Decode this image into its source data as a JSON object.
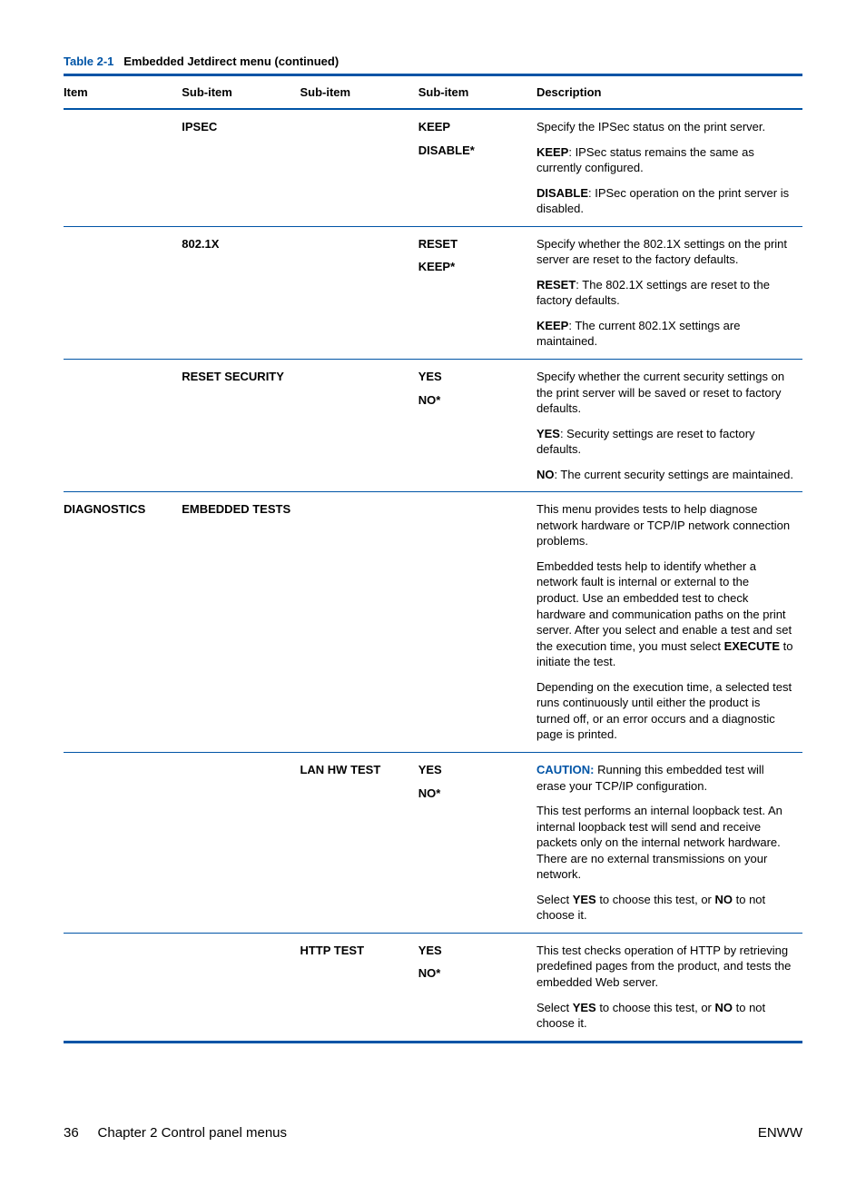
{
  "title": {
    "number": "Table 2-1",
    "name": "Embedded Jetdirect menu (continued)"
  },
  "headers": [
    "Item",
    "Sub-item",
    "Sub-item",
    "Sub-item",
    "Description"
  ],
  "rows": [
    {
      "sep": false,
      "item": "",
      "sub1": "IPSEC",
      "sub2": "",
      "opts": [
        "KEEP",
        "DISABLE*"
      ],
      "desc": [
        [
          {
            "t": "Specify the IPSec status on the print server."
          }
        ],
        [
          {
            "b": "KEEP"
          },
          {
            "t": ": IPSec status remains the same as currently configured."
          }
        ],
        [
          {
            "b": "DISABLE"
          },
          {
            "t": ": IPSec operation on the print server is disabled."
          }
        ]
      ]
    },
    {
      "sep": true,
      "item": "",
      "sub1": "802.1X",
      "sub2": "",
      "opts": [
        "RESET",
        "KEEP*"
      ],
      "desc": [
        [
          {
            "t": "Specify whether the 802.1X settings on the print server are reset to the factory defaults."
          }
        ],
        [
          {
            "b": "RESET"
          },
          {
            "t": ": The 802.1X settings are reset to the factory defaults."
          }
        ],
        [
          {
            "b": "KEEP"
          },
          {
            "t": ": The current 802.1X settings are maintained."
          }
        ]
      ]
    },
    {
      "sep": true,
      "item": "",
      "sub1": "RESET SECURITY",
      "sub2": "",
      "opts": [
        "YES",
        "NO*"
      ],
      "desc": [
        [
          {
            "t": "Specify whether the current security settings on the print server will be saved or reset to factory defaults."
          }
        ],
        [
          {
            "b": "YES"
          },
          {
            "t": ": Security settings are reset to factory defaults."
          }
        ],
        [
          {
            "b": "NO"
          },
          {
            "t": ": The current security settings are maintained."
          }
        ]
      ]
    },
    {
      "sep": true,
      "item": "DIAGNOSTICS",
      "sub1": "EMBEDDED TESTS",
      "sub2": "",
      "opts": [],
      "desc": [
        [
          {
            "t": "This menu provides tests to help diagnose network hardware or TCP/IP network connection problems."
          }
        ],
        [
          {
            "t": "Embedded tests help to identify whether a network fault is internal or external to the product. Use an embedded test to check hardware and communication paths on the print server. After you select and enable a test and set the execution time, you must select "
          },
          {
            "b": "EXECUTE"
          },
          {
            "t": " to initiate the test."
          }
        ],
        [
          {
            "t": "Depending on the execution time, a selected test runs continuously until either the product is turned off, or an error occurs and a diagnostic page is printed."
          }
        ]
      ]
    },
    {
      "sep": true,
      "item": "",
      "sub1": "",
      "sub2": "LAN HW TEST",
      "opts": [
        "YES",
        "NO*"
      ],
      "desc": [
        [
          {
            "c": "CAUTION:"
          },
          {
            "t": "   Running this embedded test will erase your TCP/IP configuration."
          }
        ],
        [
          {
            "t": "This test performs an internal loopback test. An internal loopback test will send and receive packets only on the internal network hardware. There are no external transmissions on your network."
          }
        ],
        [
          {
            "t": "Select "
          },
          {
            "b": "YES"
          },
          {
            "t": " to choose this test, or "
          },
          {
            "b": "NO"
          },
          {
            "t": " to not choose it."
          }
        ]
      ]
    },
    {
      "sep": true,
      "item": "",
      "sub1": "",
      "sub2": "HTTP TEST",
      "opts": [
        "YES",
        "NO*"
      ],
      "desc": [
        [
          {
            "t": "This test checks operation of HTTP by retrieving predefined pages from the product, and tests the embedded Web server."
          }
        ],
        [
          {
            "t": "Select "
          },
          {
            "b": "YES"
          },
          {
            "t": " to choose this test, or "
          },
          {
            "b": "NO"
          },
          {
            "t": " to not choose it."
          }
        ]
      ]
    }
  ],
  "footer": {
    "left_page": "36",
    "left_text": "Chapter 2   Control panel menus",
    "right": "ENWW"
  }
}
